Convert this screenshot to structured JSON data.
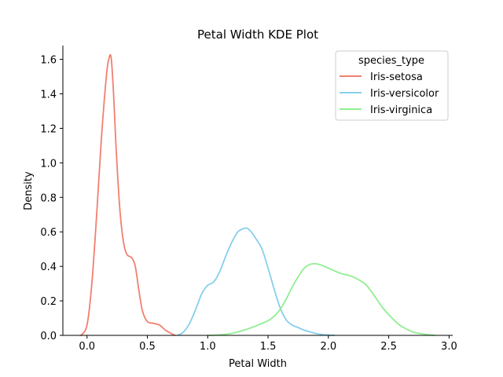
{
  "chart_data": {
    "type": "line",
    "title": "Petal Width KDE Plot",
    "xlabel": "Petal Width",
    "ylabel": "Density",
    "xlim": [
      -0.2,
      3.03
    ],
    "ylim": [
      0,
      1.68
    ],
    "xticks": [
      0.0,
      0.5,
      1.0,
      1.5,
      2.0,
      2.5,
      3.0
    ],
    "xtick_labels": [
      "0.0",
      "0.5",
      "1.0",
      "1.5",
      "2.0",
      "2.5",
      "3.0"
    ],
    "yticks": [
      0.0,
      0.2,
      0.4,
      0.6,
      0.8,
      1.0,
      1.2,
      1.4,
      1.6
    ],
    "ytick_labels": [
      "0.0",
      "0.2",
      "0.4",
      "0.6",
      "0.8",
      "1.0",
      "1.2",
      "1.4",
      "1.6"
    ],
    "grid": false,
    "legend": {
      "title": "species_type",
      "position": "top-right"
    },
    "series": [
      {
        "name": "Iris-setosa",
        "color": "#f08070",
        "x": [
          -0.05,
          0.0,
          0.04,
          0.08,
          0.12,
          0.16,
          0.18,
          0.2,
          0.22,
          0.24,
          0.27,
          0.3,
          0.33,
          0.37,
          0.4,
          0.43,
          0.46,
          0.5,
          0.55,
          0.6,
          0.65,
          0.7,
          0.73
        ],
        "y": [
          0.0,
          0.06,
          0.3,
          0.7,
          1.15,
          1.5,
          1.6,
          1.61,
          1.4,
          1.1,
          0.75,
          0.55,
          0.47,
          0.45,
          0.4,
          0.26,
          0.14,
          0.08,
          0.07,
          0.06,
          0.03,
          0.01,
          0.0
        ]
      },
      {
        "name": "Iris-versicolor",
        "color": "#87cfeb",
        "x": [
          0.75,
          0.8,
          0.85,
          0.9,
          0.95,
          1.0,
          1.05,
          1.1,
          1.15,
          1.2,
          1.25,
          1.3,
          1.33,
          1.36,
          1.4,
          1.45,
          1.5,
          1.55,
          1.6,
          1.65,
          1.7,
          1.75,
          1.8,
          1.85,
          1.9,
          1.95,
          2.0,
          2.05
        ],
        "y": [
          0.0,
          0.02,
          0.07,
          0.15,
          0.24,
          0.29,
          0.31,
          0.37,
          0.46,
          0.54,
          0.6,
          0.62,
          0.62,
          0.6,
          0.56,
          0.5,
          0.39,
          0.27,
          0.16,
          0.09,
          0.06,
          0.045,
          0.03,
          0.02,
          0.01,
          0.005,
          0.002,
          0.0
        ]
      },
      {
        "name": "Iris-virginica",
        "color": "#90ee90",
        "x": [
          1.0,
          1.1,
          1.2,
          1.3,
          1.4,
          1.5,
          1.55,
          1.6,
          1.65,
          1.7,
          1.75,
          1.8,
          1.85,
          1.9,
          1.95,
          2.0,
          2.1,
          2.2,
          2.3,
          2.35,
          2.4,
          2.45,
          2.5,
          2.55,
          2.6,
          2.7,
          2.8,
          2.88
        ],
        "y": [
          0.0,
          0.003,
          0.012,
          0.03,
          0.055,
          0.085,
          0.11,
          0.15,
          0.21,
          0.28,
          0.34,
          0.39,
          0.412,
          0.415,
          0.405,
          0.39,
          0.36,
          0.34,
          0.3,
          0.26,
          0.21,
          0.16,
          0.12,
          0.085,
          0.055,
          0.02,
          0.006,
          0.0
        ]
      }
    ]
  }
}
